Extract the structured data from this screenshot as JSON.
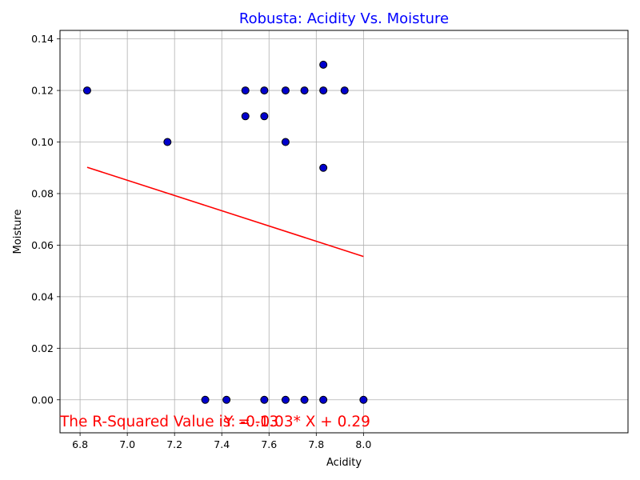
{
  "chart_data": {
    "type": "scatter",
    "title": "Robusta: Acidity Vs. Moisture",
    "xlabel": "Acidity",
    "ylabel": "Moisture",
    "xlim": [
      6.715,
      9.12
    ],
    "ylim": [
      -0.0128,
      0.1433
    ],
    "xticks": [
      6.8,
      7.0,
      7.2,
      7.4,
      7.6,
      7.8,
      8.0
    ],
    "xtick_labels": [
      "6.8",
      "7.0",
      "7.2",
      "7.4",
      "7.6",
      "7.8",
      "8.0"
    ],
    "yticks": [
      0.0,
      0.02,
      0.04,
      0.06,
      0.08,
      0.1,
      0.12,
      0.14
    ],
    "ytick_labels": [
      "0.00",
      "0.02",
      "0.04",
      "0.06",
      "0.08",
      "0.10",
      "0.12",
      "0.14"
    ],
    "grid": true,
    "colors": {
      "title": "#0000ff",
      "points": "#0000cc",
      "point_edge": "#000000",
      "line": "#ff0000",
      "annotation": "#ff0000",
      "grid": "#b0b0b0"
    },
    "points": [
      {
        "x": 6.83,
        "y": 0.12
      },
      {
        "x": 7.17,
        "y": 0.1
      },
      {
        "x": 7.33,
        "y": 0.0
      },
      {
        "x": 7.42,
        "y": 0.0
      },
      {
        "x": 7.5,
        "y": 0.12
      },
      {
        "x": 7.5,
        "y": 0.11
      },
      {
        "x": 7.58,
        "y": 0.12
      },
      {
        "x": 7.58,
        "y": 0.11
      },
      {
        "x": 7.58,
        "y": 0.0
      },
      {
        "x": 7.67,
        "y": 0.12
      },
      {
        "x": 7.67,
        "y": 0.1
      },
      {
        "x": 7.67,
        "y": 0.0
      },
      {
        "x": 7.75,
        "y": 0.12
      },
      {
        "x": 7.75,
        "y": 0.0
      },
      {
        "x": 7.83,
        "y": 0.13
      },
      {
        "x": 7.83,
        "y": 0.12
      },
      {
        "x": 7.83,
        "y": 0.09
      },
      {
        "x": 7.83,
        "y": 0.0
      },
      {
        "x": 7.92,
        "y": 0.12
      },
      {
        "x": 8.0,
        "y": 0.0
      }
    ],
    "regression_line": {
      "x": [
        6.83,
        8.0
      ],
      "y": [
        0.0902,
        0.0556
      ]
    },
    "annotations": [
      {
        "text": "The R-Squared Value is: -0.13",
        "x": 6.715,
        "y": -0.0128
      },
      {
        "text": "Y = -0.03* X + 0.29",
        "x": 7.41,
        "y": -0.0128
      }
    ]
  }
}
